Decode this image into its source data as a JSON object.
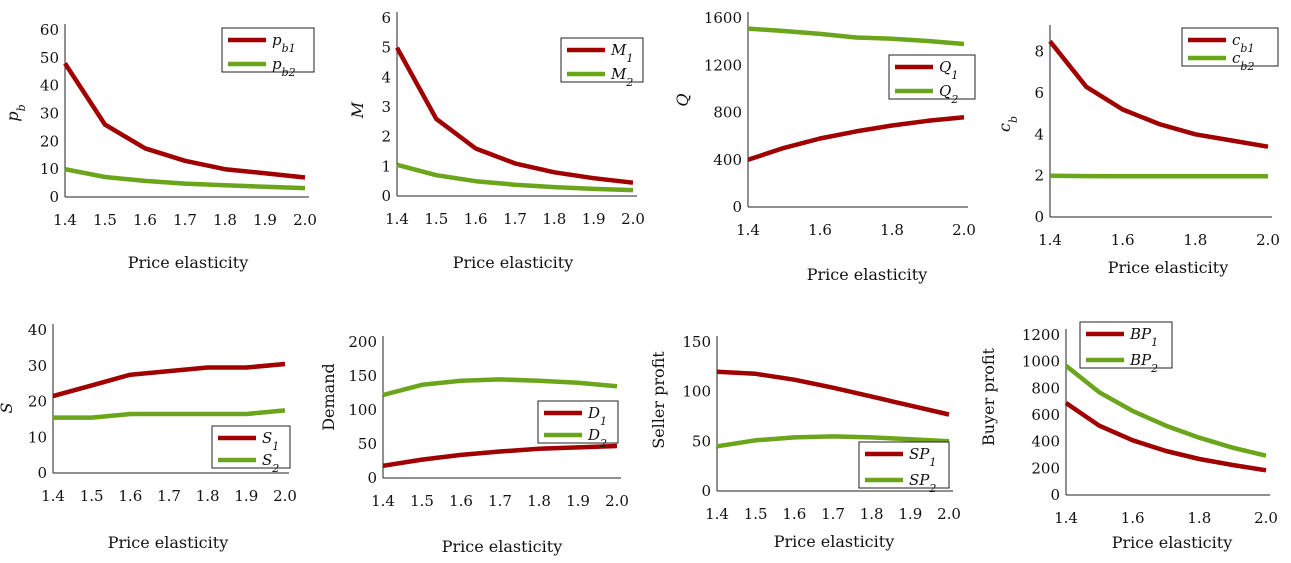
{
  "colors": {
    "series1": "#a00000",
    "series2": "#6aa51c"
  },
  "chart_data": [
    {
      "type": "line",
      "xlabel": "Price elasticity",
      "ylabel": "p_b",
      "x": [
        1.4,
        1.5,
        1.6,
        1.7,
        1.8,
        1.9,
        2.0
      ],
      "xticks": [
        "1.4",
        "1.5",
        "1.6",
        "1.7",
        "1.8",
        "1.9",
        "2.0"
      ],
      "xlim": [
        1.4,
        2.0
      ],
      "yticks": [
        "0",
        "10",
        "20",
        "30",
        "40",
        "50",
        "60"
      ],
      "ylim": [
        0,
        60
      ],
      "legend_position": "top-right",
      "series": [
        {
          "name": "p_b1",
          "values": [
            48,
            26,
            17.5,
            13,
            10,
            8.5,
            7
          ]
        },
        {
          "name": "p_b2",
          "values": [
            10,
            7.2,
            5.8,
            4.8,
            4.2,
            3.7,
            3.2
          ]
        }
      ]
    },
    {
      "type": "line",
      "xlabel": "Price elasticity",
      "ylabel": "M",
      "x": [
        1.4,
        1.5,
        1.6,
        1.7,
        1.8,
        1.9,
        2.0
      ],
      "xticks": [
        "1.4",
        "1.5",
        "1.6",
        "1.7",
        "1.8",
        "1.9",
        "2.0"
      ],
      "xlim": [
        1.4,
        2.0
      ],
      "yticks": [
        "0",
        "1",
        "2",
        "3",
        "4",
        "5",
        "6"
      ],
      "ylim": [
        0,
        6
      ],
      "legend_position": "top-right",
      "series": [
        {
          "name": "M_1",
          "values": [
            5.0,
            2.6,
            1.6,
            1.1,
            0.8,
            0.6,
            0.45
          ]
        },
        {
          "name": "M_2",
          "values": [
            1.05,
            0.7,
            0.5,
            0.38,
            0.3,
            0.24,
            0.2
          ]
        }
      ]
    },
    {
      "type": "line",
      "xlabel": "Price elasticity",
      "ylabel": "Q",
      "x": [
        1.4,
        1.5,
        1.6,
        1.7,
        1.8,
        1.9,
        2.0
      ],
      "xticks": [
        "1.4",
        "1.6",
        "1.8",
        "2.0"
      ],
      "xlim": [
        1.4,
        2.0
      ],
      "yticks": [
        "0",
        "400",
        "800",
        "1200",
        "1600"
      ],
      "ylim": [
        0,
        1600
      ],
      "legend_position": "upper-right",
      "series": [
        {
          "name": "Q_1",
          "values": [
            400,
            500,
            580,
            640,
            690,
            730,
            760
          ]
        },
        {
          "name": "Q_2",
          "values": [
            1510,
            1490,
            1465,
            1435,
            1425,
            1405,
            1380
          ]
        }
      ]
    },
    {
      "type": "line",
      "xlabel": "Price elasticity",
      "ylabel": "c_b",
      "x": [
        1.4,
        1.5,
        1.6,
        1.7,
        1.8,
        1.9,
        2.0
      ],
      "xticks": [
        "1.4",
        "1.6",
        "1.8",
        "2.0"
      ],
      "xlim": [
        1.4,
        2.0
      ],
      "yticks": [
        "0",
        "2",
        "4",
        "6",
        "8"
      ],
      "ylim": [
        0,
        9
      ],
      "legend_position": "top-right",
      "series": [
        {
          "name": "c_b1",
          "values": [
            8.5,
            6.3,
            5.2,
            4.5,
            4.0,
            3.7,
            3.4
          ]
        },
        {
          "name": "c_b2",
          "values": [
            2.0,
            1.98,
            1.97,
            1.97,
            1.97,
            1.97,
            1.97
          ]
        }
      ]
    },
    {
      "type": "line",
      "xlabel": "Price elasticity",
      "ylabel": "S",
      "x": [
        1.4,
        1.5,
        1.6,
        1.7,
        1.8,
        1.9,
        2.0
      ],
      "xticks": [
        "1.4",
        "1.5",
        "1.6",
        "1.7",
        "1.8",
        "1.9",
        "2.0"
      ],
      "xlim": [
        1.4,
        2.0
      ],
      "yticks": [
        "0",
        "10",
        "20",
        "30",
        "40"
      ],
      "ylim": [
        0,
        40
      ],
      "legend_position": "bottom-right",
      "series": [
        {
          "name": "S_1",
          "values": [
            21.5,
            24.5,
            27.5,
            28.5,
            29.5,
            29.5,
            30.5
          ]
        },
        {
          "name": "S_2",
          "values": [
            15.5,
            15.5,
            16.5,
            16.5,
            16.5,
            16.5,
            17.5
          ]
        }
      ]
    },
    {
      "type": "line",
      "xlabel": "Price elasticity",
      "ylabel": "Demand",
      "x": [
        1.4,
        1.5,
        1.6,
        1.7,
        1.8,
        1.9,
        2.0
      ],
      "xticks": [
        "1.4",
        "1.5",
        "1.6",
        "1.7",
        "1.8",
        "1.9",
        "2.0"
      ],
      "xlim": [
        1.4,
        2.0
      ],
      "yticks": [
        "0",
        "50",
        "100",
        "150",
        "200"
      ],
      "ylim": [
        0,
        200
      ],
      "legend_position": "middle-right",
      "series": [
        {
          "name": "D_1",
          "values": [
            18,
            27,
            34,
            39,
            43,
            45,
            47
          ]
        },
        {
          "name": "D_2",
          "values": [
            122,
            137,
            143,
            145,
            143,
            140,
            135
          ]
        }
      ]
    },
    {
      "type": "line",
      "xlabel": "Price elasticity",
      "ylabel": "Seller profit",
      "x": [
        1.4,
        1.5,
        1.6,
        1.7,
        1.8,
        1.9,
        2.0
      ],
      "xticks": [
        "1.4",
        "1.5",
        "1.6",
        "1.7",
        "1.8",
        "1.9",
        "2.0"
      ],
      "xlim": [
        1.4,
        2.0
      ],
      "yticks": [
        "0",
        "50",
        "100",
        "150"
      ],
      "ylim": [
        0,
        150
      ],
      "legend_position": "bottom-right",
      "series": [
        {
          "name": "SP_1",
          "values": [
            120,
            118,
            112,
            104,
            95,
            86,
            77
          ]
        },
        {
          "name": "SP_2",
          "values": [
            45,
            51,
            54,
            55,
            54,
            52,
            50
          ]
        }
      ]
    },
    {
      "type": "line",
      "xlabel": "Price elasticity",
      "ylabel": "Buyer profit",
      "x": [
        1.4,
        1.5,
        1.6,
        1.7,
        1.8,
        1.9,
        2.0
      ],
      "xticks": [
        "1.4",
        "1.6",
        "1.8",
        "2.0"
      ],
      "xlim": [
        1.4,
        2.0
      ],
      "yticks": [
        "0",
        "200",
        "400",
        "600",
        "800",
        "1000",
        "1200"
      ],
      "ylim": [
        0,
        1200
      ],
      "legend_position": "top-left",
      "series": [
        {
          "name": "BP_1",
          "values": [
            690,
            520,
            410,
            330,
            270,
            225,
            185
          ]
        },
        {
          "name": "BP_2",
          "values": [
            970,
            770,
            630,
            520,
            430,
            355,
            295
          ]
        }
      ]
    }
  ]
}
